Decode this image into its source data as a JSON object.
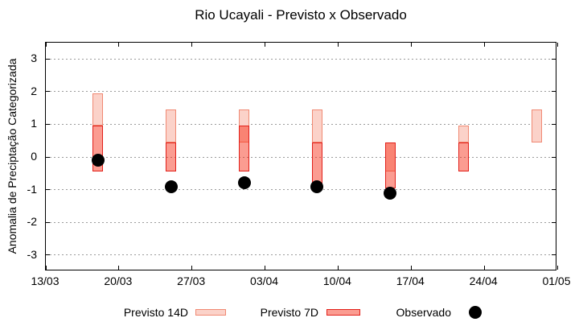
{
  "title": "Rio Ucayali - Previsto x Observado",
  "axes": {
    "ylabel": "Anomalia de Preciptação Categorizada",
    "yticks": [
      3,
      2,
      1,
      0,
      -1,
      -2,
      -3
    ],
    "ylim": [
      -3.5,
      3.5
    ],
    "xtick_labels": [
      "13/03",
      "20/03",
      "27/03",
      "03/04",
      "10/04",
      "17/04",
      "24/04",
      "01/05"
    ],
    "xtick_days": [
      0,
      7,
      14,
      21,
      28,
      35,
      42,
      49
    ]
  },
  "legend": {
    "previsto14d_label": "Previsto 14D",
    "previsto7d_label": "Previsto 7D",
    "observado_label": "Observado"
  },
  "colors": {
    "previsto14d_fill": "#fbd2c9",
    "previsto14d_border": "#f08973",
    "previsto7d_fill": "rgba(246,35,10,0.45)",
    "previsto7d_border": "#e2201a",
    "observado": "#000000",
    "grid": "#9b9b9b",
    "axis": "#000000"
  },
  "chart_data": {
    "type": "bar",
    "subtype": "floating-range-bars-with-scatter-overlay",
    "title": "Rio Ucayali - Previsto x Observado",
    "xlabel": "",
    "ylabel": "Anomalia de Preciptação Categorizada",
    "ylim": [
      -3.5,
      3.5
    ],
    "yticks": [
      -3,
      -2,
      -1,
      0,
      1,
      2,
      3
    ],
    "grid": "horizontal-dashed",
    "legend_position": "below-plot",
    "x_axis": {
      "tick_labels": [
        "13/03",
        "20/03",
        "27/03",
        "03/04",
        "10/04",
        "17/04",
        "24/04",
        "01/05"
      ],
      "tick_days": [
        0,
        7,
        14,
        21,
        28,
        35,
        42,
        49
      ],
      "days_span": 49
    },
    "series": [
      {
        "name": "Previsto 14D",
        "type": "range-bar",
        "points": [
          {
            "date": "18/03",
            "day": 5,
            "low": 0.95,
            "high": 1.95
          },
          {
            "date": "25/03",
            "day": 12,
            "low": 0.45,
            "high": 1.45
          },
          {
            "date": "01/04",
            "day": 19,
            "low": 0.45,
            "high": 1.45
          },
          {
            "date": "08/04",
            "day": 26,
            "low": 0.45,
            "high": 1.45
          },
          {
            "date": "15/04",
            "day": 33,
            "low": -0.45,
            "high": 0.45
          },
          {
            "date": "22/04",
            "day": 40,
            "low": 0.45,
            "high": 0.95
          },
          {
            "date": "29/04",
            "day": 47,
            "low": 0.45,
            "high": 1.45
          }
        ]
      },
      {
        "name": "Previsto 7D",
        "type": "range-bar",
        "points": [
          {
            "date": "18/03",
            "day": 5,
            "low": -0.45,
            "high": 0.95
          },
          {
            "date": "25/03",
            "day": 12,
            "low": -0.45,
            "high": 0.45
          },
          {
            "date": "01/04",
            "day": 19,
            "low": -0.45,
            "high": 0.95
          },
          {
            "date": "08/04",
            "day": 26,
            "low": -0.95,
            "high": 0.45
          },
          {
            "date": "15/04",
            "day": 33,
            "low": -0.95,
            "high": 0.45
          },
          {
            "date": "22/04",
            "day": 40,
            "low": -0.45,
            "high": 0.45
          }
        ]
      },
      {
        "name": "Observado",
        "type": "scatter",
        "points": [
          {
            "date": "18/03",
            "day": 5,
            "value": -0.1
          },
          {
            "date": "25/03",
            "day": 12,
            "value": -0.9
          },
          {
            "date": "01/04",
            "day": 19,
            "value": -0.8
          },
          {
            "date": "08/04",
            "day": 26,
            "value": -0.9
          },
          {
            "date": "15/04",
            "day": 33,
            "value": -1.1
          }
        ]
      }
    ]
  }
}
